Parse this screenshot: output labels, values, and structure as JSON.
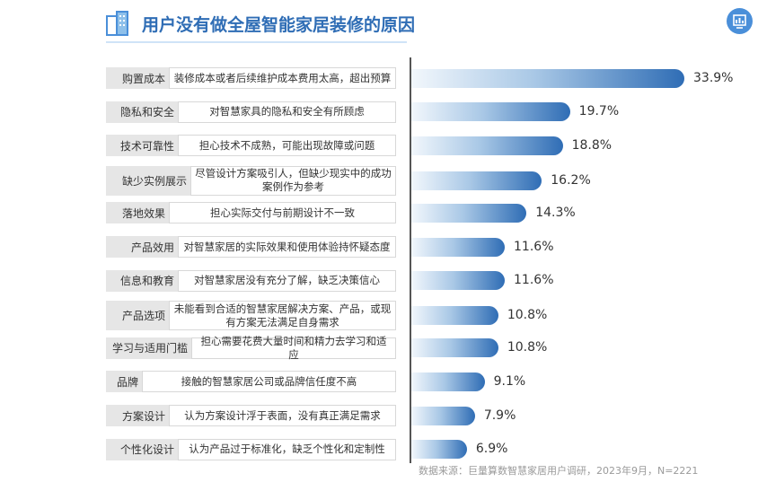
{
  "title": "用户没有做全屋智能家居装修的原因",
  "source": "数据来源：巨量算数智慧家居用户调研，2023年9月，N=2221",
  "colors": {
    "title": "#2f6db5",
    "bar_start": "#f2f7fc",
    "bar_end": "#2f6db5",
    "icon": "#4a8fd9"
  },
  "icons": {
    "title_icon": "building-icon",
    "top_right_icon": "chart-icon"
  },
  "chart_data": {
    "type": "bar",
    "orientation": "horizontal",
    "title": "用户没有做全屋智能家居装修的原因",
    "xlim": [
      0,
      35
    ],
    "grid": false,
    "categories": [
      "购置成本",
      "隐私和安全",
      "技术可靠性",
      "缺少实例展示",
      "落地效果",
      "产品效用",
      "信息和教育",
      "产品选项",
      "学习与适用门槛",
      "品牌",
      "方案设计",
      "个性化设计"
    ],
    "descriptions": [
      "装修成本或者后续维护成本费用太高，超出预算",
      "对智慧家具的隐私和安全有所顾虑",
      "担心技术不成熟，可能出现故障或问题",
      "尽管设计方案吸引人，但缺少现实中的成功案例作为参考",
      "担心实际交付与前期设计不一致",
      "对智慧家居的实际效果和使用体验持怀疑态度",
      "对智慧家居没有充分了解，缺乏决策信心",
      "未能看到合适的智慧家居解决方案、产品，或现有方案无法满足自身需求",
      "担心需要花费大量时间和精力去学习和适应",
      "接触的智慧家居公司或品牌信任度不高",
      "认为方案设计浮于表面，没有真正满足需求",
      "认为产品过于标准化，缺乏个性化和定制性"
    ],
    "values": [
      33.9,
      19.7,
      18.8,
      16.2,
      14.3,
      11.6,
      11.6,
      10.8,
      10.8,
      9.1,
      7.9,
      6.9
    ],
    "value_labels": [
      "33.9%",
      "19.7%",
      "18.8%",
      "16.2%",
      "14.3%",
      "11.6%",
      "11.6%",
      "10.8%",
      "10.8%",
      "9.1%",
      "7.9%",
      "6.9%"
    ]
  }
}
